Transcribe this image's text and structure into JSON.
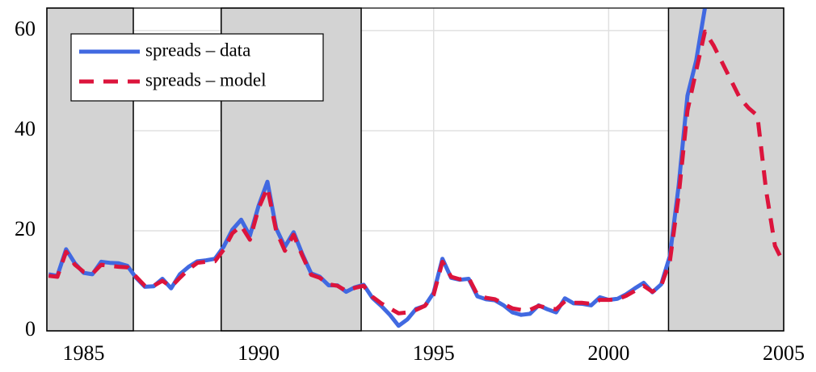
{
  "chart_data": {
    "type": "line",
    "x": [
      1984,
      1984.25,
      1984.5,
      1984.75,
      1985,
      1985.25,
      1985.5,
      1985.75,
      1986,
      1986.25,
      1986.5,
      1986.75,
      1987,
      1987.25,
      1987.5,
      1987.75,
      1988,
      1988.25,
      1988.5,
      1988.75,
      1989,
      1989.25,
      1989.5,
      1989.75,
      1990,
      1990.25,
      1990.5,
      1990.75,
      1991,
      1991.25,
      1991.5,
      1991.75,
      1992,
      1992.25,
      1992.5,
      1992.75,
      1993,
      1993.25,
      1993.5,
      1993.75,
      1994,
      1994.25,
      1994.5,
      1994.75,
      1995,
      1995.25,
      1995.5,
      1995.75,
      1996,
      1996.25,
      1996.5,
      1996.75,
      1997,
      1997.25,
      1997.5,
      1997.75,
      1998,
      1998.25,
      1998.5,
      1998.75,
      1999,
      1999.25,
      1999.5,
      1999.75,
      2000,
      2000.25,
      2000.5,
      2000.75,
      2001,
      2001.25,
      2001.5,
      2001.75,
      2002,
      2002.25,
      2002.5,
      2002.75,
      2003,
      2003.25,
      2003.5,
      2003.75,
      2004,
      2004.25,
      2004.5,
      2004.75,
      2005
    ],
    "series": [
      {
        "name": "spreads – data",
        "color": "#4169e1",
        "dashed": false,
        "values": [
          11.3,
          11.0,
          16.3,
          13.5,
          11.6,
          11.3,
          13.8,
          13.6,
          13.5,
          13.0,
          10.6,
          8.8,
          8.9,
          10.4,
          8.5,
          11.3,
          12.8,
          13.9,
          14.1,
          14.4,
          16.8,
          20.2,
          22.2,
          19.0,
          25.0,
          29.8,
          20.5,
          16.8,
          19.7,
          15.3,
          11.5,
          10.8,
          9.1,
          9.1,
          7.8,
          8.7,
          9.2,
          6.6,
          5.0,
          3.2,
          1.0,
          2.3,
          4.4,
          5.0,
          7.6,
          14.4,
          10.6,
          10.2,
          10.4,
          6.9,
          6.3,
          6.1,
          5.1,
          3.7,
          3.2,
          3.4,
          5.1,
          4.3,
          3.7,
          6.5,
          5.5,
          5.4,
          5.1,
          6.7,
          6.2,
          6.4,
          7.3,
          8.5,
          9.6,
          7.7,
          9.3,
          15.0,
          29.0,
          47.0,
          54.0,
          64.5,
          null,
          null,
          null,
          null,
          null,
          null,
          null,
          null,
          null
        ]
      },
      {
        "name": "spreads – model",
        "color": "#dc143c",
        "dashed": true,
        "values": [
          11.0,
          10.8,
          15.8,
          13.2,
          11.8,
          11.4,
          13.2,
          13.0,
          12.8,
          12.7,
          10.8,
          9.0,
          9.0,
          10.0,
          8.8,
          10.6,
          12.3,
          13.6,
          13.8,
          13.9,
          16.2,
          19.5,
          21.0,
          18.2,
          24.5,
          28.6,
          20.0,
          16.0,
          19.2,
          15.0,
          11.2,
          10.6,
          9.3,
          9.0,
          8.0,
          8.6,
          9.0,
          6.8,
          5.5,
          4.5,
          3.5,
          3.7,
          4.2,
          5.0,
          7.2,
          13.8,
          10.8,
          10.3,
          10.6,
          7.2,
          6.6,
          6.3,
          5.4,
          4.5,
          4.2,
          4.2,
          5.0,
          4.6,
          4.3,
          5.9,
          5.6,
          5.6,
          5.4,
          6.2,
          6.2,
          6.3,
          7.0,
          8.0,
          9.0,
          7.8,
          9.0,
          14.0,
          27.0,
          44.0,
          52.0,
          59.8,
          57.0,
          53.5,
          50.0,
          46.5,
          44.5,
          43.0,
          28.0,
          17.0,
          13.5
        ]
      }
    ],
    "shaded_regions": [
      [
        1983.95,
        1986.42
      ],
      [
        1988.93,
        1992.93
      ],
      [
        2001.71,
        2005
      ]
    ],
    "xlim": [
      1983.95,
      2005
    ],
    "ylim": [
      0,
      64.5
    ],
    "xticks": [
      1985,
      1990,
      1995,
      2000,
      2005
    ],
    "yticks": [
      0,
      20,
      40,
      60
    ],
    "grid": true,
    "legend": "upper left"
  }
}
